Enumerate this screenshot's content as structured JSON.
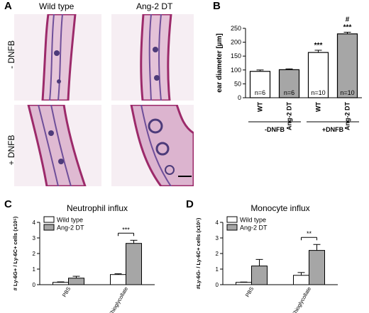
{
  "panels": {
    "a": {
      "label": "A",
      "col_headers": [
        "Wild type",
        "Ang-2 DT"
      ],
      "row_labels": [
        "- DNFB",
        "+ DNFB"
      ]
    },
    "b": {
      "label": "B"
    },
    "c": {
      "label": "C"
    },
    "d": {
      "label": "D"
    }
  },
  "chart_data": [
    {
      "id": "B",
      "type": "bar",
      "title": "",
      "ylabel": "ear diameter [µm]",
      "ylim": [
        0,
        250
      ],
      "yticks": [
        0,
        50,
        100,
        150,
        200,
        250
      ],
      "bars": [
        {
          "label": "WT",
          "value": 95,
          "error": 5,
          "fill": "#ffffff",
          "n": "n=6",
          "sig": ""
        },
        {
          "label": "Ang-2 DT",
          "value": 101,
          "error": 3,
          "fill": "#a6a6a6",
          "n": "n=6",
          "sig": ""
        },
        {
          "label": "WT",
          "value": 163,
          "error": 8,
          "fill": "#ffffff",
          "n": "n=10",
          "sig": "***"
        },
        {
          "label": "Ang-2 DT",
          "value": 230,
          "error": 6,
          "fill": "#a6a6a6",
          "n": "n=10",
          "sig": "***",
          "sig2": "#"
        }
      ],
      "groups": [
        "-DNFB",
        "+DNFB"
      ]
    },
    {
      "id": "C",
      "type": "bar",
      "title": "Neutrophil influx",
      "ylabel": "# Ly-6G+ / Ly-6C+ cells (x10⁵)",
      "ylim": [
        0,
        4
      ],
      "yticks": [
        0,
        1,
        2,
        3,
        4
      ],
      "categories": [
        "PBS",
        "Thioglycollate"
      ],
      "series": [
        {
          "name": "Wild type",
          "values": [
            0.15,
            0.65
          ],
          "errors": [
            0.03,
            0.05
          ],
          "fill": "#ffffff"
        },
        {
          "name": "Ang-2 DT",
          "values": [
            0.42,
            2.65
          ],
          "errors": [
            0.12,
            0.2
          ],
          "fill": "#a6a6a6"
        }
      ],
      "sig": "***"
    },
    {
      "id": "D",
      "type": "bar",
      "title": "Monocyte influx",
      "ylabel": "#Ly-6G- / Ly-6C+ cells (x10⁵)",
      "ylim": [
        0,
        4
      ],
      "yticks": [
        0,
        1,
        2,
        3,
        4
      ],
      "categories": [
        "PBS",
        "Thioglycollate"
      ],
      "series": [
        {
          "name": "Wild type",
          "values": [
            0.15,
            0.6
          ],
          "errors": [
            0.02,
            0.18
          ],
          "fill": "#ffffff"
        },
        {
          "name": "Ang-2 DT",
          "values": [
            1.2,
            2.2
          ],
          "errors": [
            0.42,
            0.38
          ],
          "fill": "#a6a6a6"
        }
      ],
      "sig": "**"
    }
  ]
}
